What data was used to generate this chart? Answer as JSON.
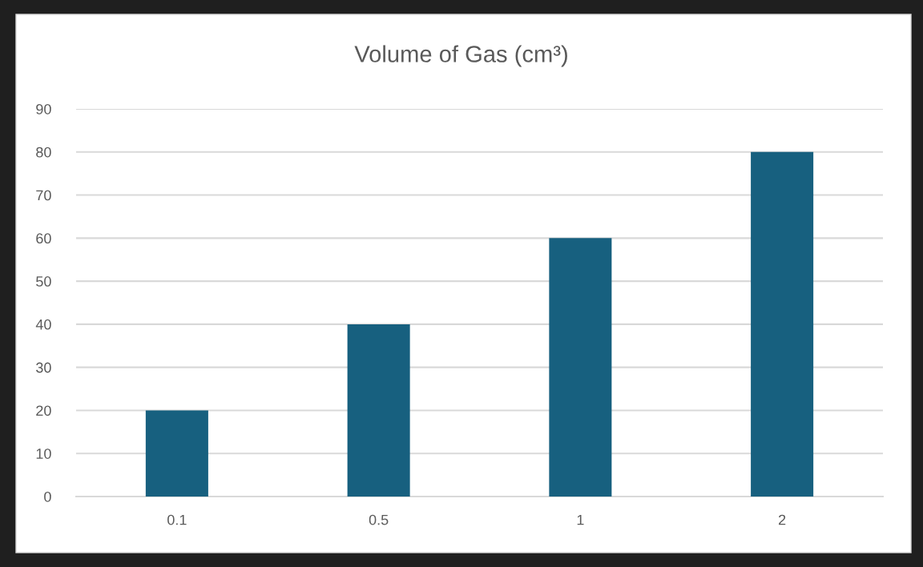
{
  "chart_data": {
    "type": "bar",
    "title": "Volume of Gas (cm³)",
    "categories": [
      "0.1",
      "0.5",
      "1",
      "2"
    ],
    "values": [
      20,
      40,
      60,
      80
    ],
    "color": "#17607f",
    "ylim": [
      0,
      90
    ],
    "yticks": [
      0,
      10,
      20,
      30,
      40,
      50,
      60,
      70,
      80,
      90
    ],
    "grid": "y"
  }
}
